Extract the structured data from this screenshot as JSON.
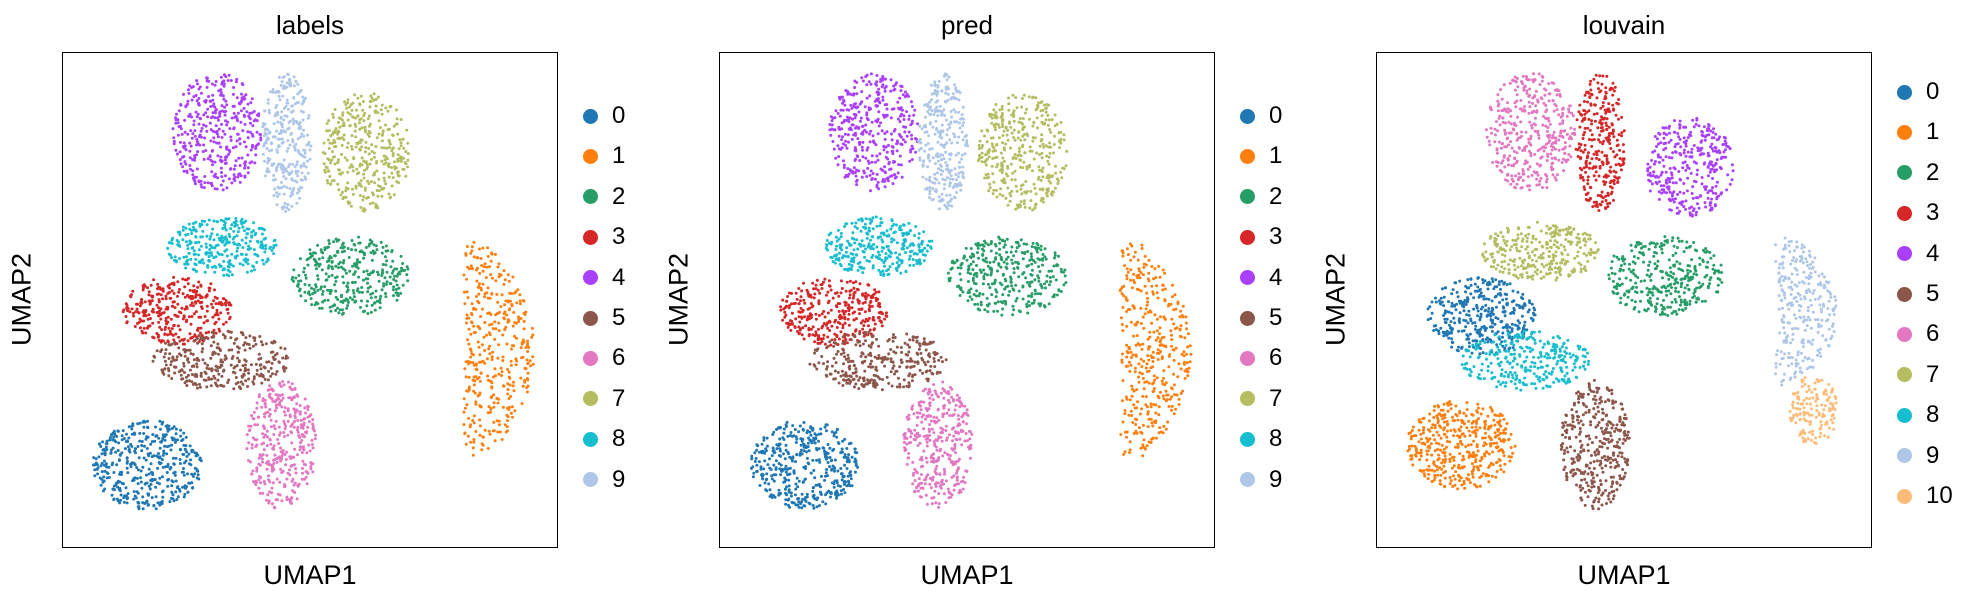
{
  "chart_data": [
    {
      "type": "scatter",
      "title": "labels",
      "xlabel": "UMAP1",
      "ylabel": "UMAP2",
      "grid": false,
      "legend_position": "right",
      "legend": [
        "0",
        "1",
        "2",
        "3",
        "4",
        "5",
        "6",
        "7",
        "8",
        "9"
      ],
      "clusters": [
        {
          "label": "0",
          "color": "#1f77b4",
          "center": [
            0.17,
            0.17
          ],
          "spread": [
            0.11,
            0.09
          ],
          "n": 420
        },
        {
          "label": "1",
          "color": "#ff7f0e",
          "center": [
            0.86,
            0.4
          ],
          "spread": [
            0.07,
            0.22
          ],
          "n": 380,
          "shape": "crescent"
        },
        {
          "label": "2",
          "color": "#279e68",
          "center": [
            0.58,
            0.55
          ],
          "spread": [
            0.12,
            0.08
          ],
          "n": 340
        },
        {
          "label": "3",
          "color": "#d62728",
          "center": [
            0.23,
            0.48
          ],
          "spread": [
            0.11,
            0.07
          ],
          "n": 330
        },
        {
          "label": "4",
          "color": "#aa40fc",
          "center": [
            0.31,
            0.84
          ],
          "spread": [
            0.09,
            0.12
          ],
          "n": 380
        },
        {
          "label": "5",
          "color": "#8c564b",
          "center": [
            0.32,
            0.38
          ],
          "spread": [
            0.14,
            0.06
          ],
          "n": 310
        },
        {
          "label": "6",
          "color": "#e377c2",
          "center": [
            0.44,
            0.21
          ],
          "spread": [
            0.07,
            0.13
          ],
          "n": 360
        },
        {
          "label": "7",
          "color": "#b5bd61",
          "center": [
            0.61,
            0.8
          ],
          "spread": [
            0.09,
            0.12
          ],
          "n": 360
        },
        {
          "label": "8",
          "color": "#17becf",
          "center": [
            0.32,
            0.61
          ],
          "spread": [
            0.11,
            0.06
          ],
          "n": 300
        },
        {
          "label": "9",
          "color": "#aec7e8",
          "center": [
            0.45,
            0.82
          ],
          "spread": [
            0.05,
            0.14
          ],
          "n": 290
        }
      ]
    },
    {
      "type": "scatter",
      "title": "pred",
      "xlabel": "UMAP1",
      "ylabel": "UMAP2",
      "grid": false,
      "legend_position": "right",
      "legend": [
        "0",
        "1",
        "2",
        "3",
        "4",
        "5",
        "6",
        "7",
        "8",
        "9"
      ],
      "clusters": [
        {
          "label": "0",
          "color": "#1f77b4",
          "center": [
            0.17,
            0.17
          ],
          "spread": [
            0.11,
            0.09
          ],
          "n": 420
        },
        {
          "label": "1",
          "color": "#ff7f0e",
          "center": [
            0.86,
            0.4
          ],
          "spread": [
            0.07,
            0.22
          ],
          "n": 380,
          "shape": "crescent"
        },
        {
          "label": "2",
          "color": "#279e68",
          "center": [
            0.58,
            0.55
          ],
          "spread": [
            0.12,
            0.08
          ],
          "n": 340
        },
        {
          "label": "3",
          "color": "#d62728",
          "center": [
            0.23,
            0.48
          ],
          "spread": [
            0.11,
            0.07
          ],
          "n": 330
        },
        {
          "label": "4",
          "color": "#aa40fc",
          "center": [
            0.31,
            0.84
          ],
          "spread": [
            0.09,
            0.12
          ],
          "n": 380
        },
        {
          "label": "5",
          "color": "#8c564b",
          "center": [
            0.32,
            0.38
          ],
          "spread": [
            0.14,
            0.06
          ],
          "n": 310
        },
        {
          "label": "6",
          "color": "#e377c2",
          "center": [
            0.44,
            0.21
          ],
          "spread": [
            0.07,
            0.13
          ],
          "n": 360
        },
        {
          "label": "7",
          "color": "#b5bd61",
          "center": [
            0.61,
            0.8
          ],
          "spread": [
            0.09,
            0.12
          ],
          "n": 360
        },
        {
          "label": "8",
          "color": "#17becf",
          "center": [
            0.32,
            0.61
          ],
          "spread": [
            0.11,
            0.06
          ],
          "n": 300
        },
        {
          "label": "9",
          "color": "#aec7e8",
          "center": [
            0.45,
            0.82
          ],
          "spread": [
            0.05,
            0.14
          ],
          "n": 290
        }
      ]
    },
    {
      "type": "scatter",
      "title": "louvain",
      "xlabel": "UMAP1",
      "ylabel": "UMAP2",
      "grid": false,
      "legend_position": "right",
      "legend": [
        "0",
        "1",
        "2",
        "3",
        "4",
        "5",
        "6",
        "7",
        "8",
        "9",
        "10"
      ],
      "clusters": [
        {
          "label": "0",
          "color": "#1f77b4",
          "center": [
            0.21,
            0.47
          ],
          "spread": [
            0.11,
            0.08
          ],
          "n": 360
        },
        {
          "label": "1",
          "color": "#ff7f0e",
          "center": [
            0.17,
            0.21
          ],
          "spread": [
            0.11,
            0.09
          ],
          "n": 420
        },
        {
          "label": "2",
          "color": "#279e68",
          "center": [
            0.58,
            0.55
          ],
          "spread": [
            0.12,
            0.08
          ],
          "n": 340
        },
        {
          "label": "3",
          "color": "#d62728",
          "center": [
            0.45,
            0.82
          ],
          "spread": [
            0.05,
            0.14
          ],
          "n": 290
        },
        {
          "label": "4",
          "color": "#aa40fc",
          "center": [
            0.63,
            0.77
          ],
          "spread": [
            0.09,
            0.1
          ],
          "n": 330
        },
        {
          "label": "5",
          "color": "#8c564b",
          "center": [
            0.44,
            0.21
          ],
          "spread": [
            0.07,
            0.13
          ],
          "n": 360
        },
        {
          "label": "6",
          "color": "#e377c2",
          "center": [
            0.31,
            0.84
          ],
          "spread": [
            0.09,
            0.12
          ],
          "n": 380
        },
        {
          "label": "7",
          "color": "#b5bd61",
          "center": [
            0.33,
            0.6
          ],
          "spread": [
            0.12,
            0.06
          ],
          "n": 300
        },
        {
          "label": "8",
          "color": "#17becf",
          "center": [
            0.3,
            0.38
          ],
          "spread": [
            0.13,
            0.06
          ],
          "n": 300
        },
        {
          "label": "9",
          "color": "#aec7e8",
          "center": [
            0.85,
            0.48
          ],
          "spread": [
            0.06,
            0.15
          ],
          "n": 280,
          "shape": "crescent"
        },
        {
          "label": "10",
          "color": "#ffbb78",
          "center": [
            0.88,
            0.28
          ],
          "spread": [
            0.05,
            0.07
          ],
          "n": 150
        }
      ]
    }
  ]
}
